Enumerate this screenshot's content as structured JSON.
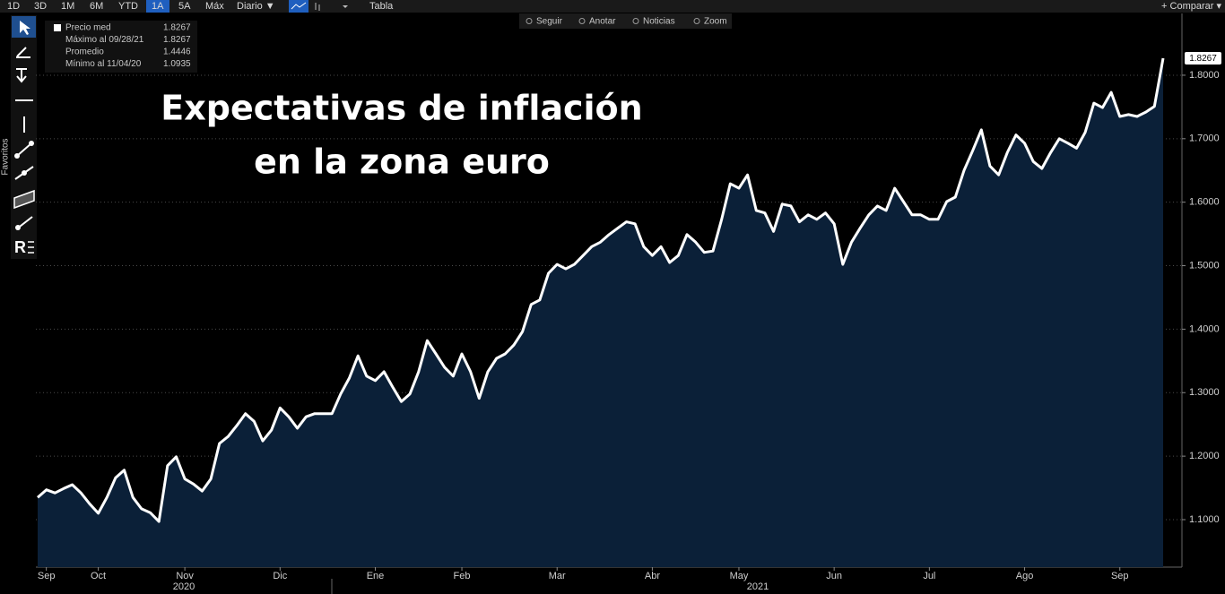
{
  "toolbar": {
    "ranges": [
      "1D",
      "3D",
      "1M",
      "6M",
      "YTD",
      "1A",
      "5A",
      "Máx"
    ],
    "frequency": "Diario ▼",
    "table": "Tabla",
    "compare": "+ Comparar ▾",
    "actions": [
      "Seguir",
      "Anotar",
      "Noticias",
      "Zoom"
    ],
    "favorites": "Favoritos"
  },
  "chart_data": {
    "type": "area",
    "title": [
      "Expectativas de inflación",
      "en la zona euro"
    ],
    "stats": [
      {
        "label": "Precio med",
        "value": 1.8267
      },
      {
        "label": "Máximo al 09/28/21",
        "value": 1.8267
      },
      {
        "label": "Promedio",
        "value": 1.4446
      },
      {
        "label": "Mínimo al 11/04/20",
        "value": 1.0935
      }
    ],
    "categories": [
      null,
      "Sep",
      null,
      null,
      null,
      null,
      null,
      "Oct",
      null,
      null,
      null,
      null,
      null,
      null,
      null,
      null,
      null,
      "Nov",
      null,
      null,
      null,
      null,
      null,
      null,
      null,
      null,
      null,
      null,
      "Dic",
      null,
      null,
      null,
      null,
      null,
      null,
      null,
      null,
      null,
      null,
      "Ene",
      null,
      null,
      null,
      null,
      null,
      null,
      null,
      null,
      null,
      "Feb",
      null,
      null,
      null,
      null,
      null,
      null,
      null,
      null,
      null,
      null,
      "Mar",
      null,
      null,
      null,
      null,
      null,
      null,
      null,
      null,
      null,
      null,
      "Abr",
      null,
      null,
      null,
      null,
      null,
      null,
      null,
      null,
      null,
      "May",
      null,
      null,
      null,
      null,
      null,
      null,
      null,
      null,
      null,
      null,
      "Jun",
      null,
      null,
      null,
      null,
      null,
      null,
      null,
      null,
      null,
      null,
      "Jul",
      null,
      null,
      null,
      null,
      null,
      null,
      null,
      null,
      null,
      null,
      "Ago",
      null,
      null,
      null,
      null,
      null,
      null,
      null,
      null,
      null,
      null,
      "Sep",
      null,
      null,
      null,
      null,
      null
    ],
    "x_groups": [
      "2020",
      "2021"
    ],
    "values": [
      1.135,
      1.147,
      1.142,
      1.149,
      1.155,
      1.142,
      1.125,
      1.11,
      1.135,
      1.166,
      1.178,
      1.135,
      1.117,
      1.111,
      1.097,
      1.185,
      1.199,
      1.164,
      1.156,
      1.145,
      1.164,
      1.22,
      1.231,
      1.248,
      1.267,
      1.255,
      1.224,
      1.241,
      1.276,
      1.262,
      1.244,
      1.262,
      1.267,
      1.267,
      1.267,
      1.298,
      1.323,
      1.358,
      1.326,
      1.319,
      1.333,
      1.309,
      1.286,
      1.298,
      1.333,
      1.382,
      1.361,
      1.34,
      1.326,
      1.361,
      1.333,
      1.291,
      1.333,
      1.354,
      1.361,
      1.375,
      1.396,
      1.439,
      1.446,
      1.488,
      1.502,
      1.495,
      1.502,
      1.516,
      1.53,
      1.537,
      1.549,
      1.559,
      1.569,
      1.566,
      1.53,
      1.516,
      1.53,
      1.505,
      1.516,
      1.549,
      1.537,
      1.521,
      1.523,
      1.573,
      1.629,
      1.622,
      1.643,
      1.587,
      1.583,
      1.554,
      1.597,
      1.594,
      1.569,
      1.58,
      1.573,
      1.583,
      1.566,
      1.502,
      1.537,
      1.559,
      1.58,
      1.594,
      1.587,
      1.622,
      1.601,
      1.58,
      1.58,
      1.573,
      1.573,
      1.601,
      1.608,
      1.65,
      1.681,
      1.714,
      1.657,
      1.643,
      1.678,
      1.706,
      1.693,
      1.664,
      1.653,
      1.678,
      1.7,
      1.693,
      1.685,
      1.71,
      1.756,
      1.749,
      1.773,
      1.735,
      1.738,
      1.735,
      1.742,
      1.751,
      1.8267
    ],
    "color": "#ffffff",
    "fill": "#0b2038",
    "ylim": [
      1.0252,
      1.8973
    ],
    "yticks": [
      {
        "value": 1.1,
        "label": "1.1000"
      },
      {
        "value": 1.2,
        "label": "1.2000"
      },
      {
        "value": 1.3,
        "label": "1.3000"
      },
      {
        "value": 1.4,
        "label": "1.4000"
      },
      {
        "value": 1.5,
        "label": "1.5000"
      },
      {
        "value": 1.6,
        "label": "1.6000"
      },
      {
        "value": 1.7,
        "label": "1.7000"
      },
      {
        "value": 1.8,
        "label": "1.8000"
      }
    ],
    "grid": true
  }
}
